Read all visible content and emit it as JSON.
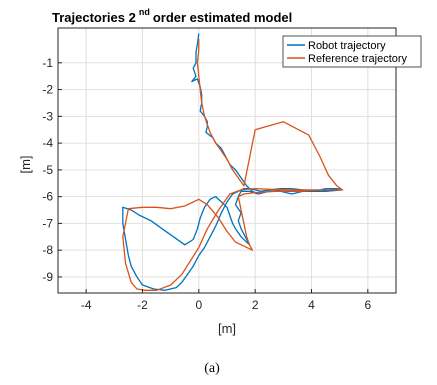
{
  "chart_data": {
    "type": "line",
    "title_main": "Trajectories 2",
    "title_sup": "nd",
    "title_rest": " order estimated model",
    "xlabel": "[m]",
    "ylabel": "[m]",
    "xlim": [
      -5,
      7
    ],
    "ylim": [
      -9.6,
      0.3
    ],
    "xticks": [
      -4,
      -2,
      0,
      2,
      4,
      6
    ],
    "yticks": [
      -9,
      -8,
      -7,
      -6,
      -5,
      -4,
      -3,
      -2,
      -1
    ],
    "grid": true,
    "legend_position": "top-right",
    "caption": "(a)",
    "series": [
      {
        "name": "Robot trajectory",
        "color": "#0072BD",
        "x": [
          0.0,
          -0.05,
          -0.1,
          -0.1,
          -0.2,
          -0.1,
          -0.25,
          -0.05,
          0.05,
          0.1,
          0.1,
          0.05,
          0.2,
          0.3,
          0.3,
          0.25,
          0.5,
          0.6,
          0.8,
          0.9,
          1.0,
          1.1,
          1.3,
          1.5,
          1.7,
          1.9,
          2.1,
          2.5,
          2.9,
          3.3,
          3.7,
          4.1,
          4.4,
          4.7,
          4.9,
          5.0,
          5.1,
          4.5,
          4.0,
          3.5,
          3.0,
          2.5,
          2.1,
          1.8,
          1.5,
          1.4,
          1.3,
          1.5,
          1.4,
          1.5,
          1.6,
          1.7,
          1.8,
          1.5,
          1.3,
          1.2,
          1.1,
          1.0,
          0.8,
          0.6,
          0.4,
          0.2,
          0.05,
          -0.05,
          -0.2,
          -0.5,
          -0.9,
          -1.3,
          -1.7,
          -2.1,
          -2.4,
          -2.7,
          -2.7,
          -2.6,
          -2.5,
          -2.4,
          -2.2,
          -2.0,
          -1.6,
          -1.2,
          -0.8,
          -0.6,
          -0.4,
          -0.2,
          0.0,
          0.2,
          0.4,
          0.6,
          0.8,
          1.0,
          1.2,
          1.4,
          1.6,
          1.8,
          2.0,
          2.2,
          2.5,
          2.9,
          3.3,
          3.7,
          4.1,
          4.5,
          4.9,
          5.1
        ],
        "y": [
          0.1,
          -0.3,
          -0.6,
          -1.0,
          -1.2,
          -1.5,
          -1.7,
          -1.6,
          -1.9,
          -2.2,
          -2.5,
          -2.8,
          -3.0,
          -3.2,
          -3.4,
          -3.6,
          -3.8,
          -4.0,
          -4.2,
          -4.4,
          -4.6,
          -4.8,
          -5.0,
          -5.3,
          -5.6,
          -5.8,
          -5.9,
          -5.8,
          -5.8,
          -5.9,
          -5.8,
          -5.8,
          -5.8,
          -5.75,
          -5.75,
          -5.7,
          -5.75,
          -5.8,
          -5.8,
          -5.8,
          -5.75,
          -5.8,
          -5.9,
          -5.8,
          -5.8,
          -6.0,
          -6.3,
          -6.6,
          -6.9,
          -7.2,
          -7.4,
          -7.6,
          -7.8,
          -7.5,
          -7.2,
          -7.0,
          -6.7,
          -6.4,
          -6.2,
          -6.0,
          -6.1,
          -6.4,
          -6.8,
          -7.2,
          -7.6,
          -7.8,
          -7.5,
          -7.2,
          -6.9,
          -6.7,
          -6.5,
          -6.4,
          -7.0,
          -7.6,
          -8.2,
          -8.6,
          -9.0,
          -9.3,
          -9.45,
          -9.5,
          -9.4,
          -9.2,
          -8.9,
          -8.6,
          -8.2,
          -7.9,
          -7.5,
          -7.1,
          -6.6,
          -6.2,
          -5.9,
          -5.8,
          -5.7,
          -5.7,
          -5.75,
          -5.8,
          -5.75,
          -5.7,
          -5.7,
          -5.75,
          -5.8,
          -5.7,
          -5.7,
          -5.75
        ]
      },
      {
        "name": "Reference trajectory",
        "color": "#D95319",
        "x": [
          0.0,
          0.0,
          -0.05,
          0.0,
          0.05,
          0.1,
          0.2,
          0.3,
          0.4,
          0.6,
          0.8,
          1.0,
          1.2,
          1.4,
          1.6,
          2.0,
          3.0,
          3.9,
          4.3,
          4.6,
          4.9,
          5.1,
          4.3,
          3.5,
          2.7,
          2.0,
          1.6,
          1.4,
          1.5,
          1.6,
          1.7,
          1.8,
          1.9,
          1.3,
          1.0,
          0.7,
          0.3,
          0.0,
          -0.5,
          -1.0,
          -1.5,
          -2.0,
          -2.5,
          -2.7,
          -2.6,
          -2.4,
          -2.2,
          -1.9,
          -1.5,
          -1.0,
          -0.6,
          -0.3,
          0.0,
          0.3,
          0.7,
          1.1,
          1.5,
          2.0,
          3.0,
          4.0,
          5.0
        ],
        "y": [
          -0.1,
          -0.5,
          -1.0,
          -1.5,
          -2.0,
          -2.5,
          -3.0,
          -3.3,
          -3.6,
          -4.0,
          -4.3,
          -4.6,
          -5.0,
          -5.3,
          -5.6,
          -3.5,
          -3.2,
          -3.7,
          -4.5,
          -5.2,
          -5.6,
          -5.75,
          -5.75,
          -5.8,
          -5.8,
          -5.85,
          -5.9,
          -6.0,
          -6.5,
          -7.0,
          -7.5,
          -7.8,
          -8.0,
          -7.7,
          -7.3,
          -6.8,
          -6.3,
          -6.1,
          -6.35,
          -6.45,
          -6.4,
          -6.4,
          -6.45,
          -7.5,
          -8.5,
          -9.2,
          -9.45,
          -9.5,
          -9.5,
          -9.3,
          -8.9,
          -8.4,
          -7.9,
          -7.2,
          -6.5,
          -5.9,
          -5.75,
          -5.7,
          -5.75,
          -5.75,
          -5.75
        ]
      }
    ]
  }
}
